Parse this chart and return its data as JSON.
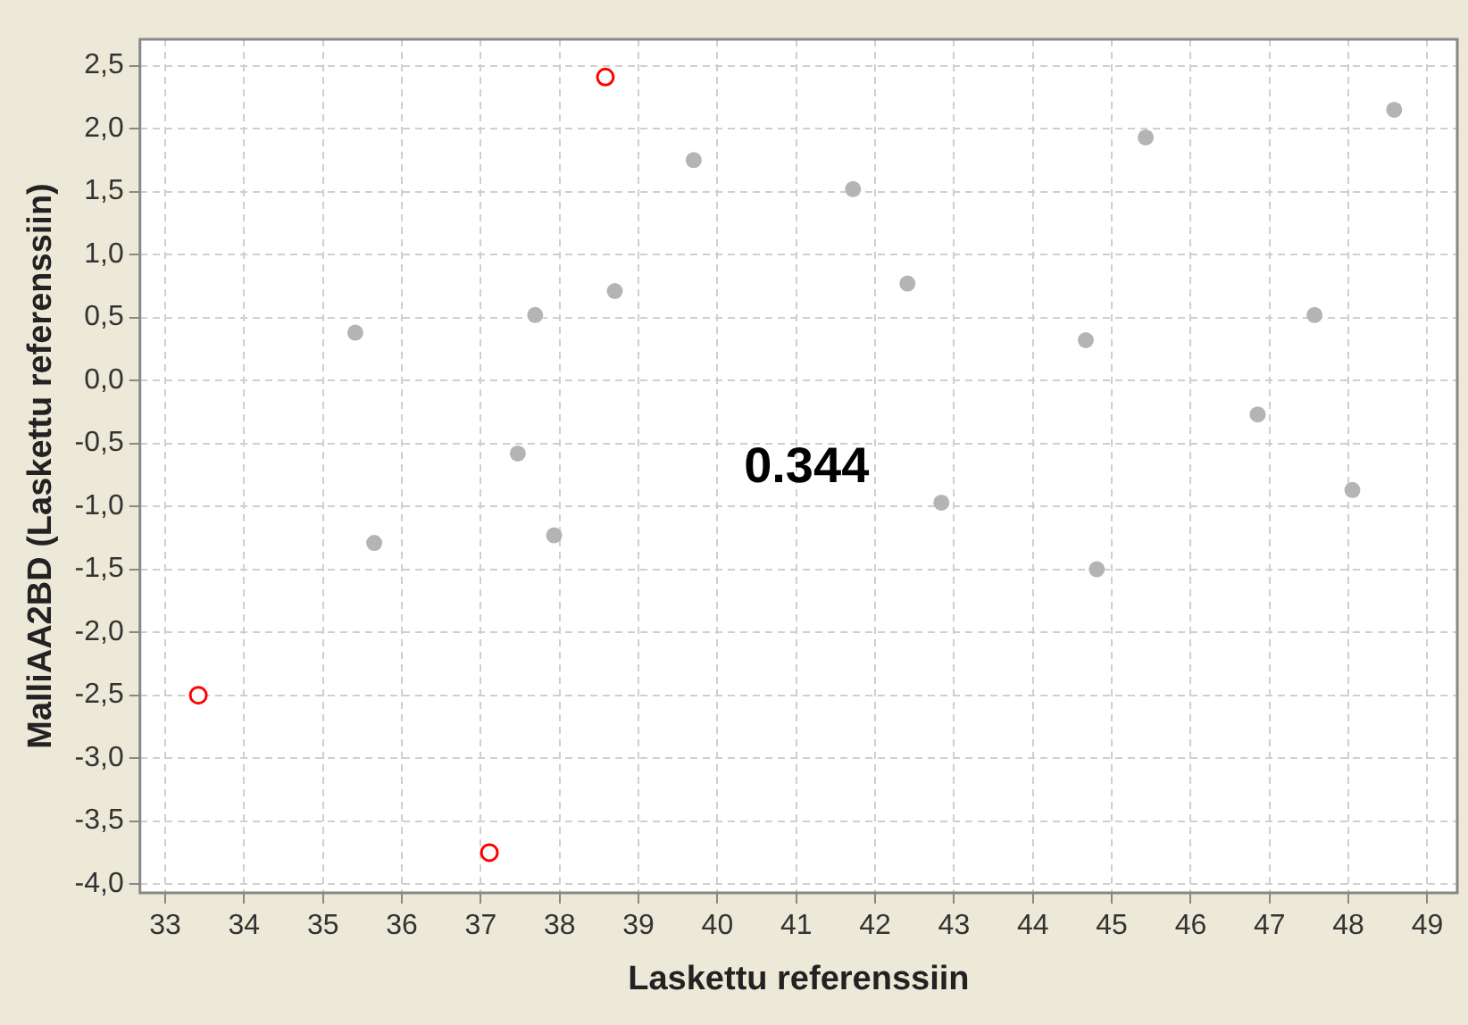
{
  "chart_data": {
    "type": "scatter",
    "xlabel": "Laskettu referenssiin",
    "ylabel": "MalliAA2BD (Laskettu referenssiin)",
    "annotations": [
      "0.344"
    ],
    "xlim": [
      32.68,
      49.38
    ],
    "xticks": [
      33,
      34,
      35,
      36,
      37,
      38,
      39,
      40,
      41,
      42,
      43,
      44,
      45,
      46,
      47,
      48,
      49
    ],
    "ylim": [
      -4.07,
      2.71
    ],
    "yticks": [
      {
        "value": -4,
        "label": "-4,0"
      },
      {
        "value": -3.5,
        "label": "-3,5"
      },
      {
        "value": -3,
        "label": "-3,0"
      },
      {
        "value": -2.5,
        "label": "-2,5"
      },
      {
        "value": -2,
        "label": "-2,0"
      },
      {
        "value": -1.5,
        "label": "-1,5"
      },
      {
        "value": -1,
        "label": "-1,0"
      },
      {
        "value": -0.5,
        "label": "-0,5"
      },
      {
        "value": 0,
        "label": "0,0"
      },
      {
        "value": 0.5,
        "label": "0,5"
      },
      {
        "value": 1,
        "label": "1,0"
      },
      {
        "value": 1.5,
        "label": "1,5"
      },
      {
        "value": 2,
        "label": "2,0"
      },
      {
        "value": 2.5,
        "label": "2,5"
      }
    ],
    "grid": true,
    "marker": "circle",
    "series": [
      {
        "color": "#b4b4b4",
        "x": [
          35.41,
          35.65,
          37.47,
          37.69,
          37.93,
          38.7,
          39.7,
          41.72,
          42.41,
          42.84,
          44.67,
          44.81,
          45.43,
          46.85,
          47.57,
          48.05,
          48.58
        ],
        "values": [
          0.38,
          -1.29,
          -0.58,
          0.52,
          -1.23,
          0.71,
          1.75,
          1.52,
          0.77,
          -0.97,
          0.32,
          -1.5,
          1.93,
          -0.27,
          0.52,
          -0.87,
          2.15
        ]
      },
      {
        "color": "#ff0000",
        "x": [
          38.58,
          33.42,
          37.11
        ],
        "values": [
          2.41,
          -2.5,
          -3.75
        ]
      }
    ]
  }
}
